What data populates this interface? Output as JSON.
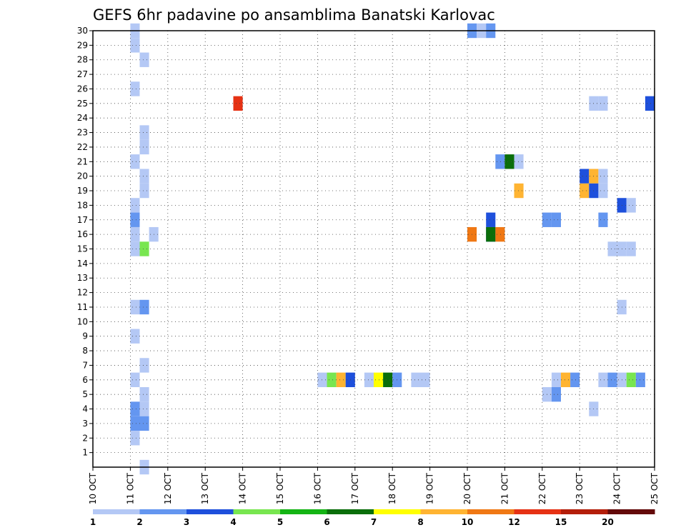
{
  "chart_data": {
    "type": "heatmap",
    "title": "GEFS 6hr padavine po ansamblima Banatski Karlovac",
    "xlabel": "",
    "ylabel": "",
    "x_ticks": [
      "10 OCT",
      "11 OCT",
      "12 OCT",
      "13 OCT",
      "14 OCT",
      "15 OCT",
      "16 OCT",
      "17 OCT",
      "18 OCT",
      "19 OCT",
      "20 OCT",
      "21 OCT",
      "22 OCT",
      "23 OCT",
      "24 OCT",
      "25 OCT"
    ],
    "xlim": [
      0,
      60
    ],
    "x_unit": "6-hour step from 10 OCT 00Z (4 steps per day)",
    "y_ticks": [
      "1",
      "2",
      "3",
      "4",
      "5",
      "6",
      "7",
      "8",
      "9",
      "10",
      "11",
      "12",
      "13",
      "14",
      "15",
      "16",
      "17",
      "18",
      "19",
      "20",
      "21",
      "22",
      "23",
      "24",
      "25",
      "26",
      "27",
      "28",
      "29",
      "30"
    ],
    "ylim": [
      0,
      30
    ],
    "grid": true,
    "colorbar": {
      "placement": "bottom",
      "labels": [
        "1",
        "2",
        "3",
        "4",
        "5",
        "6",
        "7",
        "8",
        "10",
        "12",
        "15",
        "20"
      ],
      "colors": [
        "#b4c8f5",
        "#6496f0",
        "#1e50dc",
        "#78e650",
        "#14b414",
        "#0a6e0a",
        "#ffff00",
        "#ffb432",
        "#f07814",
        "#e63214",
        "#b41e0a",
        "#640a0a"
      ]
    },
    "cells": [
      {
        "x": 4,
        "y": 29,
        "c": 0
      },
      {
        "x": 4,
        "y": 30,
        "c": 0
      },
      {
        "x": 5,
        "y": 28,
        "c": 0
      },
      {
        "x": 4,
        "y": 26,
        "c": 0
      },
      {
        "x": 5,
        "y": 23,
        "c": 0
      },
      {
        "x": 5,
        "y": 22,
        "c": 0
      },
      {
        "x": 4,
        "y": 21,
        "c": 0
      },
      {
        "x": 5,
        "y": 20,
        "c": 0
      },
      {
        "x": 5,
        "y": 19,
        "c": 0
      },
      {
        "x": 4,
        "y": 18,
        "c": 0
      },
      {
        "x": 4,
        "y": 17,
        "c": 1
      },
      {
        "x": 4,
        "y": 16,
        "c": 0
      },
      {
        "x": 6,
        "y": 16,
        "c": 0
      },
      {
        "x": 4,
        "y": 15,
        "c": 0
      },
      {
        "x": 5,
        "y": 15,
        "c": 3
      },
      {
        "x": 4,
        "y": 11,
        "c": 0
      },
      {
        "x": 5,
        "y": 11,
        "c": 1
      },
      {
        "x": 4,
        "y": 9,
        "c": 0
      },
      {
        "x": 5,
        "y": 7,
        "c": 0
      },
      {
        "x": 4,
        "y": 6,
        "c": 0
      },
      {
        "x": 5,
        "y": 5,
        "c": 0
      },
      {
        "x": 4,
        "y": 4,
        "c": 1
      },
      {
        "x": 5,
        "y": 4,
        "c": 0
      },
      {
        "x": 4,
        "y": 3,
        "c": 1
      },
      {
        "x": 5,
        "y": 3,
        "c": 1
      },
      {
        "x": 4,
        "y": 2,
        "c": 0
      },
      {
        "x": 5,
        "y": 0,
        "c": 0
      },
      {
        "x": 15,
        "y": 25,
        "c": 9
      },
      {
        "x": 24,
        "y": 6,
        "c": 0
      },
      {
        "x": 25,
        "y": 6,
        "c": 3
      },
      {
        "x": 26,
        "y": 6,
        "c": 7
      },
      {
        "x": 27,
        "y": 6,
        "c": 2
      },
      {
        "x": 29,
        "y": 6,
        "c": 0
      },
      {
        "x": 30,
        "y": 6,
        "c": 6
      },
      {
        "x": 31,
        "y": 6,
        "c": 5
      },
      {
        "x": 32,
        "y": 6,
        "c": 1
      },
      {
        "x": 34,
        "y": 6,
        "c": 0
      },
      {
        "x": 35,
        "y": 6,
        "c": 0
      },
      {
        "x": 40,
        "y": 30,
        "c": 1
      },
      {
        "x": 41,
        "y": 30,
        "c": 0
      },
      {
        "x": 42,
        "y": 30,
        "c": 1
      },
      {
        "x": 43,
        "y": 21,
        "c": 1
      },
      {
        "x": 44,
        "y": 21,
        "c": 5
      },
      {
        "x": 45,
        "y": 21,
        "c": 0
      },
      {
        "x": 45,
        "y": 19,
        "c": 7
      },
      {
        "x": 42,
        "y": 17,
        "c": 2
      },
      {
        "x": 42,
        "y": 16,
        "c": 2
      },
      {
        "x": 40,
        "y": 16,
        "c": 8
      },
      {
        "x": 42,
        "y": 16,
        "c": 5
      },
      {
        "x": 43,
        "y": 16,
        "c": 8
      },
      {
        "x": 48,
        "y": 17,
        "c": 1
      },
      {
        "x": 49,
        "y": 17,
        "c": 1
      },
      {
        "x": 48,
        "y": 5,
        "c": 0
      },
      {
        "x": 49,
        "y": 5,
        "c": 1
      },
      {
        "x": 49,
        "y": 6,
        "c": 0
      },
      {
        "x": 50,
        "y": 6,
        "c": 7
      },
      {
        "x": 51,
        "y": 6,
        "c": 1
      },
      {
        "x": 52,
        "y": 20,
        "c": 2
      },
      {
        "x": 53,
        "y": 20,
        "c": 7
      },
      {
        "x": 54,
        "y": 20,
        "c": 0
      },
      {
        "x": 52,
        "y": 19,
        "c": 7
      },
      {
        "x": 53,
        "y": 19,
        "c": 2
      },
      {
        "x": 54,
        "y": 19,
        "c": 0
      },
      {
        "x": 54,
        "y": 17,
        "c": 1
      },
      {
        "x": 53,
        "y": 25,
        "c": 0
      },
      {
        "x": 54,
        "y": 25,
        "c": 0
      },
      {
        "x": 53,
        "y": 4,
        "c": 0
      },
      {
        "x": 54,
        "y": 6,
        "c": 0
      },
      {
        "x": 55,
        "y": 6,
        "c": 1
      },
      {
        "x": 55,
        "y": 15,
        "c": 0
      },
      {
        "x": 56,
        "y": 15,
        "c": 0
      },
      {
        "x": 57,
        "y": 15,
        "c": 0
      },
      {
        "x": 56,
        "y": 18,
        "c": 2
      },
      {
        "x": 57,
        "y": 18,
        "c": 0
      },
      {
        "x": 56,
        "y": 11,
        "c": 0
      },
      {
        "x": 56,
        "y": 6,
        "c": 0
      },
      {
        "x": 57,
        "y": 6,
        "c": 3
      },
      {
        "x": 58,
        "y": 6,
        "c": 1
      },
      {
        "x": 59,
        "y": 25,
        "c": 2
      }
    ]
  }
}
